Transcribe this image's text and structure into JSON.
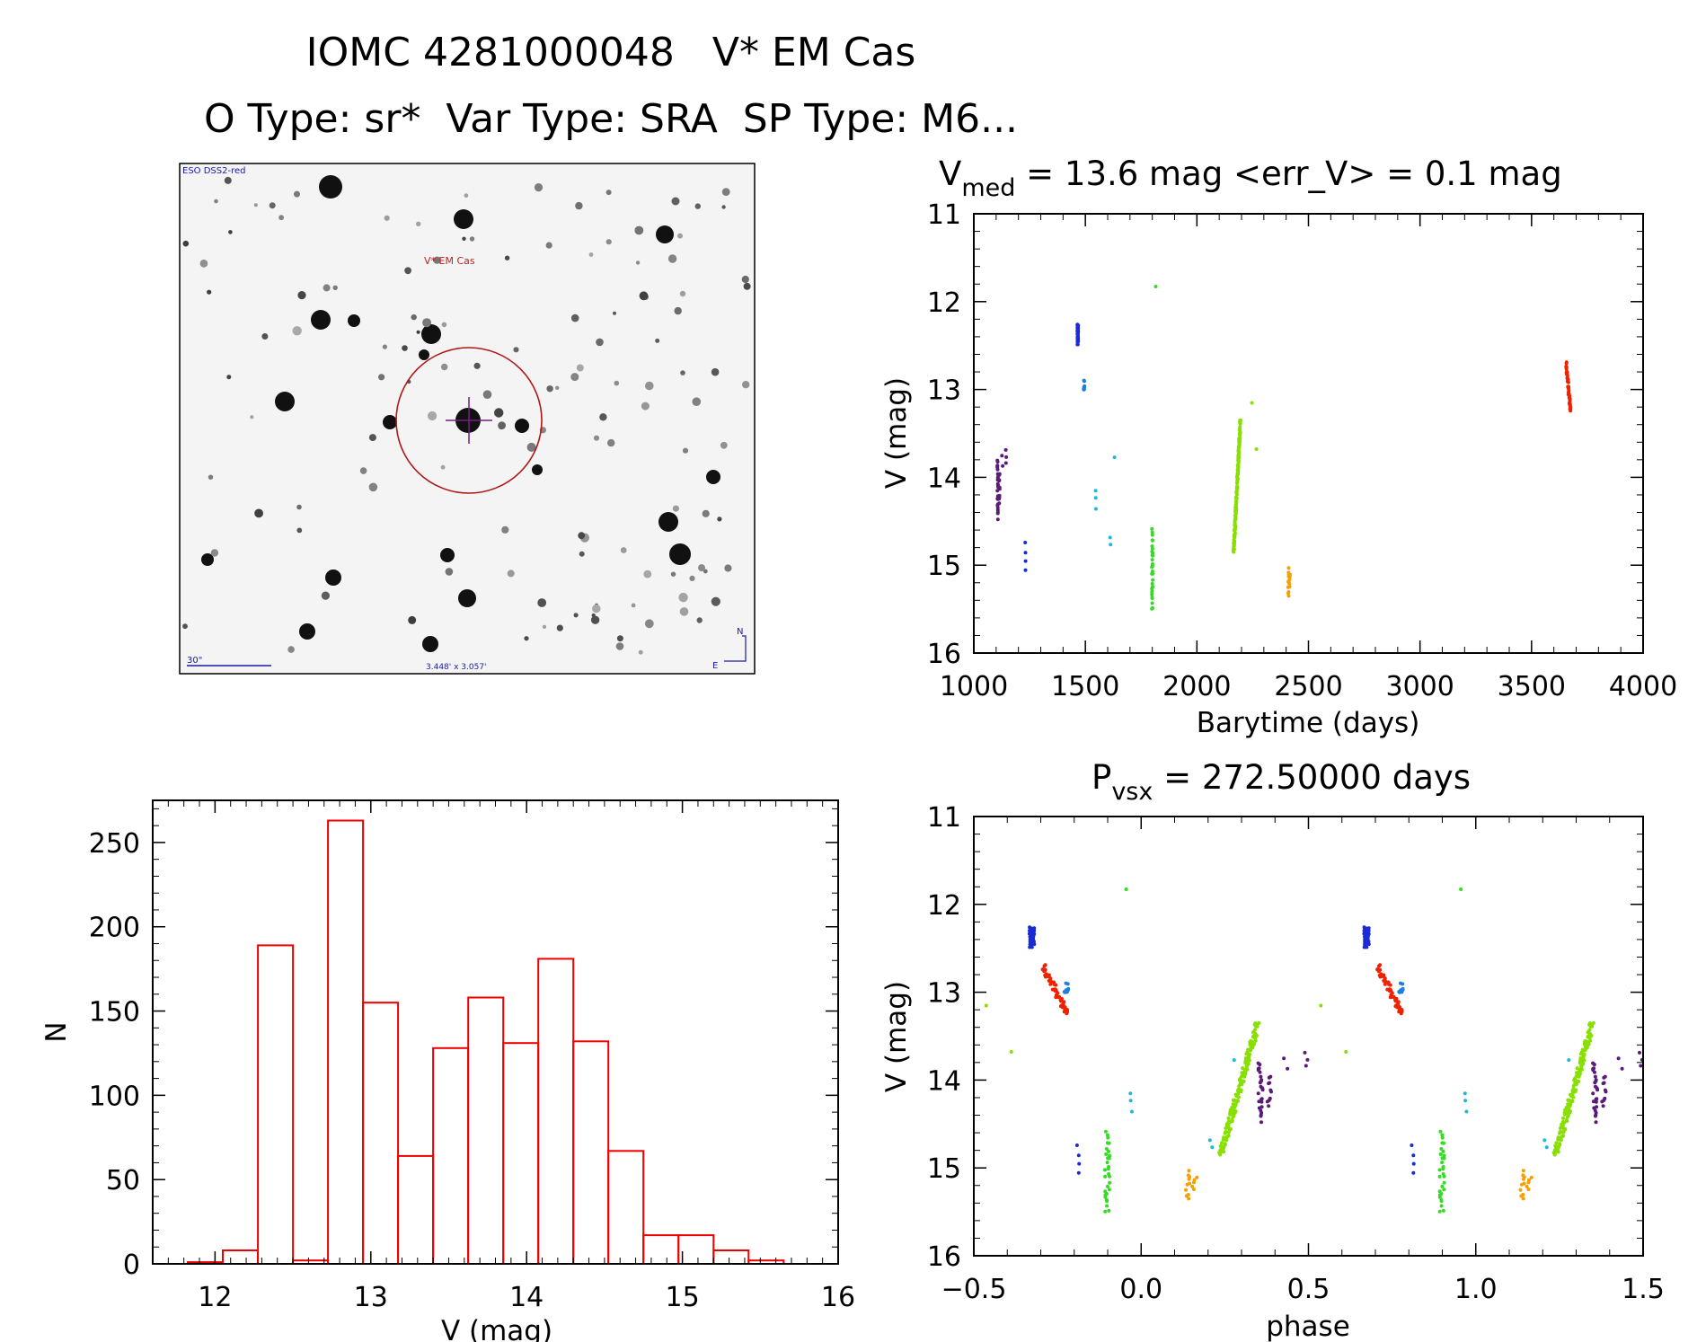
{
  "header": {
    "title": "IOMC 4281000048   V* EM Cas",
    "subtitle": "O Type: sr*  Var Type: SRA  SP Type: M6..."
  },
  "finding_chart": {
    "survey_label": "ESO DSS2-red",
    "target_label": "V* EM Cas",
    "scale_label": "30\"",
    "size_label": "3.448' x 3.057'",
    "north_label": "N",
    "east_label": "E"
  },
  "colors": {
    "ltc_purple": "#5a1a7a",
    "ltc_blue": "#1a2bd6",
    "ltc_lightblue": "#1a7fe0",
    "ltc_cyan": "#20b8d8",
    "ltc_green": "#33dd22",
    "ltc_lime": "#88e000",
    "ltc_orange": "#f5a000",
    "ltc_red": "#ee2200",
    "hist_red": "#ee0000"
  },
  "lightcurve": {
    "title_main": "V",
    "title_sub": "med",
    "title_rest": " = 13.6 mag <err_V> = 0.1 mag"
  },
  "phased": {
    "title_main": "P",
    "title_sub": "vsx",
    "title_rest": " = 272.50000 days"
  },
  "chart_data": [
    {
      "id": "lightcurve",
      "type": "scatter",
      "xlabel": "Barytime (days)",
      "ylabel": "V (mag)",
      "xlim": [
        1000,
        4000
      ],
      "ylim": [
        16,
        11
      ],
      "x_ticks": [
        "1000",
        "1500",
        "2000",
        "2500",
        "3000",
        "3500",
        "4000"
      ],
      "y_ticks": [
        "11",
        "12",
        "13",
        "14",
        "15",
        "16"
      ],
      "series": [
        {
          "name": "purple",
          "color": "#5a1a7a",
          "groups": [
            {
              "x": 1107,
              "y0": 13.8,
              "y1": 14.45,
              "n": 26
            },
            {
              "x": 1114,
              "y0": 13.95,
              "y1": 14.3,
              "n": 10
            },
            {
              "x": 1128,
              "y0": 13.75,
              "y1": 13.85,
              "n": 2
            },
            {
              "x": 1145,
              "y0": 13.7,
              "y1": 13.85,
              "n": 3
            }
          ]
        },
        {
          "name": "blue",
          "color": "#1a2bd6",
          "groups": [
            {
              "x": 1232,
              "y0": 14.75,
              "y1": 15.05,
              "n": 4
            },
            {
              "x": 1466,
              "y0": 12.25,
              "y1": 12.48,
              "n": 40
            }
          ]
        },
        {
          "name": "lightblue",
          "color": "#1a7fe0",
          "groups": [
            {
              "x": 1494,
              "y0": 12.92,
              "y1": 13.02,
              "n": 8
            }
          ]
        },
        {
          "name": "cyan",
          "color": "#20b8d8",
          "groups": [
            {
              "x": 1548,
              "y0": 14.15,
              "y1": 14.35,
              "n": 3
            },
            {
              "x": 1612,
              "y0": 14.7,
              "y1": 14.75,
              "n": 2
            },
            {
              "x": 1630,
              "y0": 13.75,
              "y1": 13.75,
              "n": 1
            }
          ]
        },
        {
          "name": "green",
          "color": "#33dd22",
          "groups": [
            {
              "x": 1800,
              "y0": 14.6,
              "y1": 15.5,
              "n": 30
            },
            {
              "x": 1815,
              "y0": 11.82,
              "y1": 11.82,
              "n": 1
            }
          ]
        },
        {
          "name": "lime",
          "color": "#88e000",
          "groups": [
            {
              "x0": 2165,
              "x1": 2195,
              "y0": 14.85,
              "y1": 13.35,
              "n": 160
            },
            {
              "x": 2245,
              "y0": 13.15,
              "y1": 13.15,
              "n": 1
            },
            {
              "x": 2265,
              "y0": 13.65,
              "y1": 13.65,
              "n": 1
            }
          ]
        },
        {
          "name": "orange",
          "color": "#f5a000",
          "groups": [
            {
              "x": 2410,
              "y0": 15.05,
              "y1": 15.35,
              "n": 10
            },
            {
              "x": 2416,
              "y0": 15.1,
              "y1": 15.25,
              "n": 5
            }
          ]
        },
        {
          "name": "red",
          "color": "#ee2200",
          "groups": [
            {
              "x0": 3655,
              "x1": 3675,
              "y0": 12.7,
              "y1": 13.25,
              "n": 50
            }
          ]
        }
      ]
    },
    {
      "id": "phased",
      "type": "scatter",
      "xlabel": "phase",
      "ylabel": "V (mag)",
      "xlim": [
        -0.5,
        1.5
      ],
      "ylim": [
        16,
        11
      ],
      "x_ticks": [
        "−0.5",
        "0.0",
        "0.5",
        "1.0",
        "1.5"
      ],
      "y_ticks": [
        "11",
        "12",
        "13",
        "14",
        "15",
        "16"
      ],
      "period_days": 272.5
    },
    {
      "id": "histogram",
      "type": "bar",
      "xlabel": "V (mag)",
      "ylabel": "N",
      "xlim": [
        11.6,
        16
      ],
      "ylim": [
        0,
        275
      ],
      "x_ticks": [
        "12",
        "13",
        "14",
        "15",
        "16"
      ],
      "y_ticks": [
        "0",
        "50",
        "100",
        "150",
        "200",
        "250"
      ],
      "bin_width": 0.225,
      "bin_start": 11.825,
      "values": [
        1,
        8,
        189,
        2,
        263,
        155,
        64,
        128,
        158,
        131,
        181,
        132,
        67,
        17,
        17,
        8,
        2
      ]
    }
  ]
}
